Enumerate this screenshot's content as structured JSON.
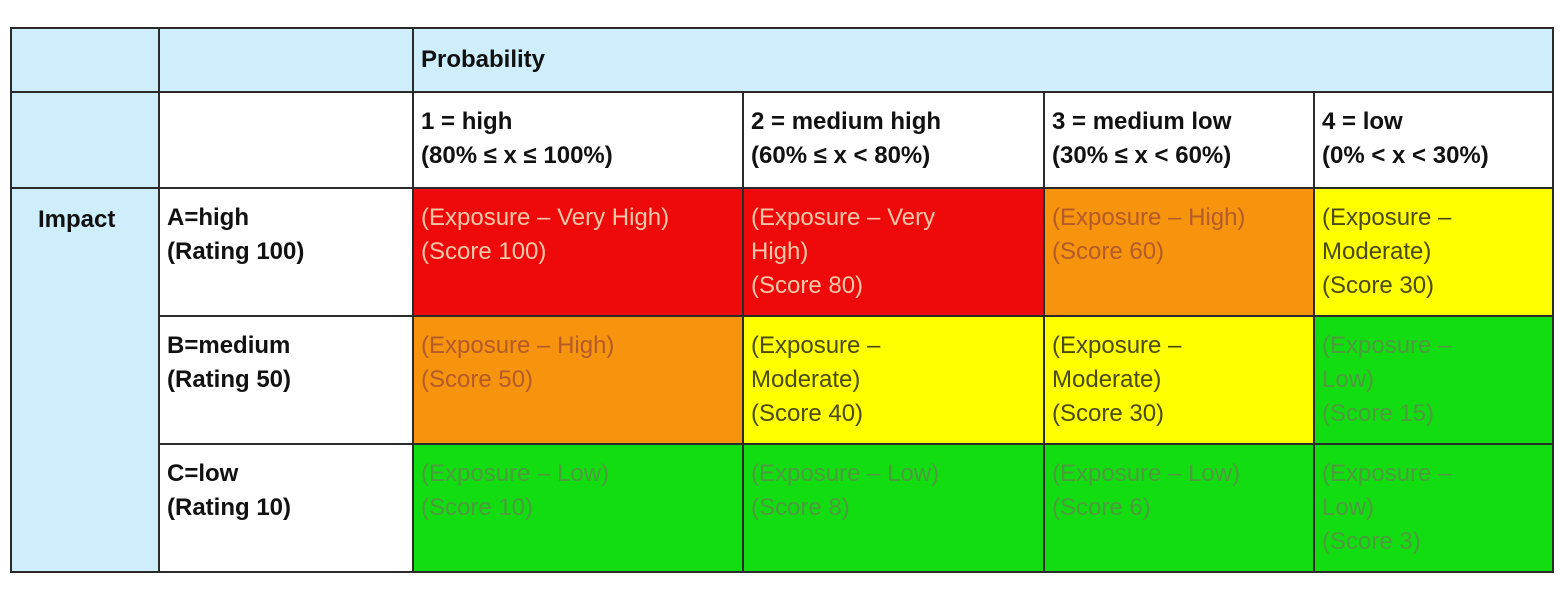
{
  "header": {
    "probability_label": "Probability",
    "impact_label": "Impact"
  },
  "columns": [
    {
      "line1": "1 = high",
      "line2": "(80% ≤ x ≤ 100%)"
    },
    {
      "line1": "2 = medium high",
      "line2": "(60% ≤ x < 80%)"
    },
    {
      "line1": "3 = medium low",
      "line2": "(30% ≤ x < 60%)"
    },
    {
      "line1": "4 = low",
      "line2": "(0% < x < 30%)"
    }
  ],
  "rows": [
    {
      "line1": "A=high",
      "line2": "(Rating 100)",
      "cells": [
        {
          "level": "red",
          "lines": [
            "(Exposure – Very High)",
            "(Score 100)"
          ]
        },
        {
          "level": "red",
          "lines": [
            "(Exposure – Very",
            "High)",
            "(Score 80)"
          ]
        },
        {
          "level": "orange",
          "lines": [
            "(Exposure – High)",
            "(Score 60)"
          ]
        },
        {
          "level": "yellow",
          "lines": [
            "(Exposure –",
            "Moderate)",
            "(Score 30)"
          ]
        }
      ]
    },
    {
      "line1": "B=medium",
      "line2": "(Rating 50)",
      "cells": [
        {
          "level": "orange",
          "lines": [
            "(Exposure – High)",
            "(Score 50)"
          ]
        },
        {
          "level": "yellow",
          "lines": [
            "(Exposure –",
            "Moderate)",
            "(Score 40)"
          ]
        },
        {
          "level": "yellow",
          "lines": [
            "(Exposure –",
            "Moderate)",
            "(Score 30)"
          ]
        },
        {
          "level": "green",
          "lines": [
            "(Exposure –",
            "Low)",
            "(Score 15)"
          ]
        }
      ]
    },
    {
      "line1": "C=low",
      "line2": "(Rating 10)",
      "cells": [
        {
          "level": "green",
          "lines": [
            "(Exposure – Low)",
            "(Score 10)"
          ]
        },
        {
          "level": "green",
          "lines": [
            "(Exposure – Low)",
            "(Score 8)"
          ]
        },
        {
          "level": "green",
          "lines": [
            "(Exposure – Low)",
            "(Score 6)"
          ]
        },
        {
          "level": "green",
          "lines": [
            "(Exposure –",
            "Low)",
            "(Score 3)"
          ]
        }
      ]
    }
  ],
  "colors": {
    "header_bg": "#cdeefa",
    "red": "#ee0a0a",
    "orange": "#f7940d",
    "yellow": "#ffff00",
    "green": "#11dd11"
  }
}
